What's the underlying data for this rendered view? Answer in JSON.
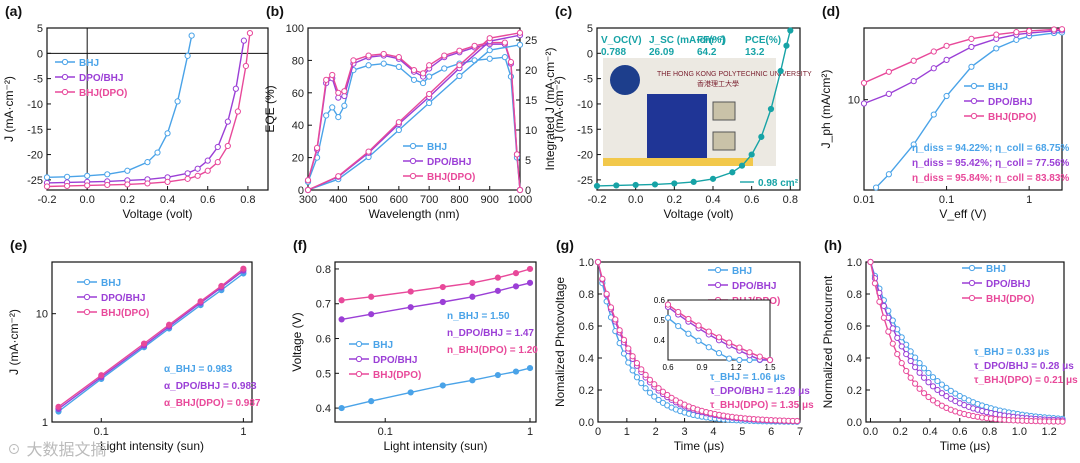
{
  "colors": {
    "bhj": "#4aa3e8",
    "dpo_bhj": "#9b3fd6",
    "bhj_dpo": "#e8499a",
    "teal": "#17a3a6",
    "frame": "#111111"
  },
  "legend": {
    "bhj": "BHJ",
    "dpo_bhj": "DPO/BHJ",
    "bhj_dpo": "BHJ(DPO)"
  },
  "watermark": "大数据文摘",
  "chart_data": [
    {
      "id": "a",
      "panel_label": "(a)",
      "type": "line",
      "xlabel": "Voltage (volt)",
      "ylabel": "J (mA·cm⁻²)",
      "xlim": [
        -0.2,
        0.9
      ],
      "ylim": [
        -27,
        5
      ],
      "xticks": [
        "-0.2",
        "0.0",
        "0.2",
        "0.4",
        "0.6",
        "0.8"
      ],
      "xtickvals": [
        -0.2,
        0,
        0.2,
        0.4,
        0.6,
        0.8
      ],
      "yticks": [
        "5",
        "0",
        "-5",
        "-10",
        "-15",
        "-20",
        "-25"
      ],
      "ytickvals": [
        5,
        0,
        -5,
        -10,
        -15,
        -20,
        -25
      ],
      "series": [
        {
          "name": "BHJ",
          "key": "bhj",
          "x": [
            -0.2,
            -0.1,
            0,
            0.1,
            0.2,
            0.3,
            0.35,
            0.4,
            0.45,
            0.5,
            0.52
          ],
          "y": [
            -24.5,
            -24.4,
            -24.2,
            -23.9,
            -23.2,
            -21.5,
            -19.6,
            -15.8,
            -9.5,
            -0.5,
            3.5
          ]
        },
        {
          "name": "DPO/BHJ",
          "key": "dpo_bhj",
          "x": [
            -0.2,
            -0.1,
            0,
            0.1,
            0.2,
            0.3,
            0.4,
            0.5,
            0.55,
            0.6,
            0.65,
            0.7,
            0.74,
            0.78
          ],
          "y": [
            -25.6,
            -25.5,
            -25.4,
            -25.3,
            -25.1,
            -24.9,
            -24.5,
            -23.7,
            -22.8,
            -21.2,
            -18.5,
            -13.5,
            -7.0,
            2.5
          ]
        },
        {
          "name": "BHJ(DPO)",
          "key": "bhj_dpo",
          "x": [
            -0.2,
            -0.1,
            0,
            0.1,
            0.2,
            0.3,
            0.4,
            0.5,
            0.55,
            0.6,
            0.65,
            0.7,
            0.75,
            0.79,
            0.81
          ],
          "y": [
            -26.3,
            -26.2,
            -26.1,
            -26.0,
            -25.9,
            -25.7,
            -25.4,
            -24.8,
            -24.2,
            -23.2,
            -21.5,
            -18.3,
            -11.5,
            -2.5,
            4.0
          ]
        }
      ]
    },
    {
      "id": "b",
      "panel_label": "(b)",
      "type": "line",
      "xlabel": "Wavelength (nm)",
      "ylabel": "EQE (%)",
      "y2label": "Integrated J (mA·cm⁻²)",
      "xlim": [
        300,
        1000
      ],
      "ylim": [
        0,
        100
      ],
      "y2lim": [
        0,
        27
      ],
      "xticks": [
        "300",
        "400",
        "500",
        "600",
        "700",
        "800",
        "900",
        "1000"
      ],
      "xtickvals": [
        300,
        400,
        500,
        600,
        700,
        800,
        900,
        1000
      ],
      "yticks": [
        "0",
        "20",
        "40",
        "60",
        "80",
        "100"
      ],
      "ytickvals": [
        0,
        20,
        40,
        60,
        80,
        100
      ],
      "y2ticks": [
        "0",
        "5",
        "10",
        "15",
        "20",
        "25"
      ],
      "y2tickvals": [
        0,
        5,
        10,
        15,
        20,
        25
      ],
      "series": [
        {
          "name": "BHJ",
          "key": "bhj",
          "x": [
            300,
            330,
            360,
            380,
            400,
            420,
            450,
            500,
            550,
            600,
            650,
            680,
            700,
            750,
            800,
            850,
            900,
            950,
            970,
            990,
            1000
          ],
          "y": [
            5,
            20,
            46,
            51,
            45,
            52,
            74,
            77,
            78,
            76,
            68,
            66,
            70,
            75,
            78,
            80,
            81,
            82,
            70,
            20,
            0
          ]
        },
        {
          "name": "DPO/BHJ",
          "key": "dpo_bhj",
          "x": [
            300,
            330,
            360,
            380,
            400,
            420,
            450,
            500,
            550,
            600,
            650,
            680,
            700,
            750,
            800,
            850,
            900,
            950,
            970,
            990,
            1000
          ],
          "y": [
            6,
            25,
            66,
            69,
            57,
            58,
            78,
            82,
            83,
            81,
            73,
            70,
            75,
            82,
            85,
            88,
            90,
            90,
            78,
            22,
            0
          ]
        },
        {
          "name": "BHJ(DPO)",
          "key": "bhj_dpo",
          "x": [
            300,
            330,
            360,
            380,
            400,
            420,
            450,
            500,
            550,
            600,
            650,
            680,
            700,
            750,
            800,
            850,
            900,
            950,
            970,
            990,
            1000
          ],
          "y": [
            6,
            26,
            68,
            71,
            60,
            61,
            80,
            83,
            84,
            82,
            74,
            72,
            77,
            83,
            86,
            89,
            91,
            91,
            79,
            22,
            0
          ]
        }
      ],
      "integrated": [
        {
          "name": "BHJ",
          "key": "bhj",
          "x": [
            300,
            400,
            500,
            600,
            700,
            800,
            900,
            1000
          ],
          "y": [
            0,
            1.8,
            5.5,
            10,
            14.5,
            19,
            23.3,
            24.2
          ]
        },
        {
          "name": "DPO/BHJ",
          "key": "dpo_bhj",
          "x": [
            300,
            400,
            500,
            600,
            700,
            800,
            900,
            1000
          ],
          "y": [
            0,
            2.2,
            6.2,
            11,
            15.5,
            20.3,
            24.8,
            25.8
          ]
        },
        {
          "name": "BHJ(DPO)",
          "key": "bhj_dpo",
          "x": [
            300,
            400,
            500,
            600,
            700,
            800,
            900,
            1000
          ],
          "y": [
            0,
            2.3,
            6.4,
            11.3,
            16,
            20.8,
            25.3,
            26.2
          ]
        }
      ]
    },
    {
      "id": "c",
      "panel_label": "(c)",
      "type": "line",
      "xlabel": "Voltage (volt)",
      "ylabel": "J (mA·cm⁻²)",
      "xlim": [
        -0.2,
        0.85
      ],
      "ylim": [
        -27,
        5
      ],
      "xticks": [
        "-0.2",
        "0.0",
        "0.2",
        "0.4",
        "0.6",
        "0.8"
      ],
      "xtickvals": [
        -0.2,
        0,
        0.2,
        0.4,
        0.6,
        0.8
      ],
      "yticks": [
        "5",
        "0",
        "-5",
        "-10",
        "-15",
        "-20",
        "-25"
      ],
      "ytickvals": [
        5,
        0,
        -5,
        -10,
        -15,
        -20,
        -25
      ],
      "table": {
        "headers": [
          "V_OC(V)",
          "J_SC (mA·cm⁻²)",
          "FF(%)",
          "PCE(%)"
        ],
        "values": [
          "0.788",
          "26.09",
          "64.2",
          "13.2"
        ]
      },
      "photo": {
        "top_text": "THE HONG KONG POLYTECHNIC UNIVERSITY",
        "chinese_text": "香港理工大學"
      },
      "area_label": "0.98 cm²",
      "series": [
        {
          "name": "0.98 cm²",
          "key": "teal",
          "x": [
            -0.2,
            -0.1,
            0,
            0.1,
            0.2,
            0.3,
            0.4,
            0.5,
            0.55,
            0.6,
            0.65,
            0.7,
            0.75,
            0.78,
            0.8
          ],
          "y": [
            -26.2,
            -26.1,
            -26.0,
            -25.9,
            -25.7,
            -25.4,
            -24.8,
            -23.5,
            -22.2,
            -20,
            -16.5,
            -11,
            -3.5,
            1.5,
            4.5
          ]
        }
      ]
    },
    {
      "id": "d",
      "panel_label": "(d)",
      "type": "line",
      "xlabel": "V_eff (V)",
      "ylabel": "J_ph (mA/cm²)",
      "scale": "log-log",
      "xlim": [
        0.01,
        2.5
      ],
      "ylim": [
        3,
        26
      ],
      "xticks": [
        "0.01",
        "0.1",
        "1"
      ],
      "xtickvals": [
        0.01,
        0.1,
        1
      ],
      "yticks": [
        "10"
      ],
      "ytickvals": [
        10
      ],
      "annotations": [
        "η_diss = 94.22%;  η_coll = 68.75%",
        "η_diss = 95.42%;  η_coll = 77.56%",
        "η_diss = 95.84%;  η_coll = 83.83%"
      ],
      "series": [
        {
          "name": "BHJ",
          "key": "bhj",
          "x": [
            0.014,
            0.02,
            0.04,
            0.07,
            0.1,
            0.2,
            0.4,
            0.7,
            1,
            2,
            2.5
          ],
          "y": [
            3.1,
            3.7,
            5.5,
            8.2,
            10.5,
            15.5,
            19.8,
            22.2,
            23.3,
            24.3,
            24.5
          ]
        },
        {
          "name": "DPO/BHJ",
          "key": "dpo_bhj",
          "x": [
            0.01,
            0.02,
            0.04,
            0.07,
            0.1,
            0.2,
            0.4,
            0.7,
            1,
            2,
            2.5
          ],
          "y": [
            9.5,
            10.8,
            12.8,
            15.2,
            17.0,
            20.2,
            22.5,
            23.8,
            24.3,
            25.0,
            25.2
          ]
        },
        {
          "name": "BHJ(DPO)",
          "key": "bhj_dpo",
          "x": [
            0.01,
            0.02,
            0.04,
            0.07,
            0.1,
            0.2,
            0.4,
            0.7,
            1,
            2,
            2.5
          ],
          "y": [
            12.5,
            14.5,
            16.8,
            19.0,
            20.5,
            22.5,
            23.8,
            24.6,
            25.0,
            25.5,
            25.6
          ]
        }
      ]
    },
    {
      "id": "e",
      "panel_label": "(e)",
      "type": "scatter",
      "xlabel": "Light intensity (sun)",
      "ylabel": "J (mA·cm⁻²)",
      "scale": "log-log",
      "xlim": [
        0.045,
        1.15
      ],
      "ylim": [
        1,
        30
      ],
      "xticks": [
        "0.1",
        "1"
      ],
      "xtickvals": [
        0.1,
        1
      ],
      "yticks": [
        "1",
        "10"
      ],
      "ytickvals": [
        1,
        10
      ],
      "annotations": [
        "α_BHJ = 0.983",
        "α_DPO/BHJ = 0.983",
        "α_BHJ(DPO) = 0.987"
      ],
      "series": [
        {
          "name": "BHJ",
          "key": "bhj",
          "x": [
            0.05,
            0.1,
            0.2,
            0.3,
            0.5,
            0.7,
            1
          ],
          "y": [
            1.25,
            2.5,
            4.9,
            7.3,
            12,
            16.5,
            23.5
          ]
        },
        {
          "name": "DPO/BHJ",
          "key": "dpo_bhj",
          "x": [
            0.05,
            0.1,
            0.2,
            0.3,
            0.5,
            0.7,
            1
          ],
          "y": [
            1.32,
            2.6,
            5.1,
            7.6,
            12.6,
            17.5,
            25
          ]
        },
        {
          "name": "BHJ(DPO)",
          "key": "bhj_dpo",
          "x": [
            0.05,
            0.1,
            0.2,
            0.3,
            0.5,
            0.7,
            1
          ],
          "y": [
            1.38,
            2.7,
            5.3,
            7.9,
            13,
            18,
            26
          ]
        }
      ]
    },
    {
      "id": "f",
      "panel_label": "(f)",
      "type": "scatter",
      "xlabel": "Light intensity (sun)",
      "ylabel": "Voltage (V)",
      "scale": "log-x",
      "xlim": [
        0.045,
        1.1
      ],
      "ylim": [
        0.36,
        0.82
      ],
      "xticks": [
        "0.1",
        "1"
      ],
      "xtickvals": [
        0.1,
        1
      ],
      "yticks": [
        "0.4",
        "0.5",
        "0.6",
        "0.7",
        "0.8"
      ],
      "ytickvals": [
        0.4,
        0.5,
        0.6,
        0.7,
        0.8
      ],
      "annotations": [
        "n_BHJ = 1.50",
        "n_DPO/BHJ = 1.47",
        "n_BHJ(DPO) = 1.20"
      ],
      "series": [
        {
          "name": "BHJ",
          "key": "bhj",
          "x": [
            0.05,
            0.08,
            0.15,
            0.25,
            0.4,
            0.6,
            0.8,
            1
          ],
          "y": [
            0.4,
            0.42,
            0.445,
            0.465,
            0.48,
            0.495,
            0.505,
            0.515
          ]
        },
        {
          "name": "DPO/BHJ",
          "key": "dpo_bhj",
          "x": [
            0.05,
            0.08,
            0.15,
            0.25,
            0.4,
            0.6,
            0.8,
            1
          ],
          "y": [
            0.655,
            0.67,
            0.69,
            0.705,
            0.72,
            0.737,
            0.75,
            0.76
          ]
        },
        {
          "name": "BHJ(DPO)",
          "key": "bhj_dpo",
          "x": [
            0.05,
            0.08,
            0.15,
            0.25,
            0.4,
            0.6,
            0.8,
            1
          ],
          "y": [
            0.71,
            0.72,
            0.735,
            0.748,
            0.76,
            0.775,
            0.788,
            0.8
          ]
        }
      ]
    },
    {
      "id": "g",
      "panel_label": "(g)",
      "type": "line",
      "xlabel": "Time (μs)",
      "ylabel": "Nomalized Photovoltage",
      "xlim": [
        0,
        7
      ],
      "ylim": [
        0,
        1
      ],
      "xticks": [
        "0",
        "1",
        "2",
        "3",
        "4",
        "5",
        "6",
        "7"
      ],
      "xtickvals": [
        0,
        1,
        2,
        3,
        4,
        5,
        6,
        7
      ],
      "yticks": [
        "0.0",
        "0.2",
        "0.4",
        "0.6",
        "0.8",
        "1.0"
      ],
      "ytickvals": [
        0,
        0.2,
        0.4,
        0.6,
        0.8,
        1
      ],
      "annotations": [
        "τ_BHJ = 1.06 μs",
        "τ_DPO/BHJ = 1.29 μs",
        "τ_BHJ(DPO) = 1.35 μs"
      ],
      "inset": {
        "xlim": [
          0.6,
          1.5
        ],
        "ylim": [
          0.3,
          0.6
        ],
        "xticks": [
          "0.6",
          "0.9",
          "1.2",
          "1.5"
        ],
        "xtickvals": [
          0.6,
          0.9,
          1.2,
          1.5
        ],
        "yticks": [
          "0.4",
          "0.5",
          "0.6"
        ],
        "ytickvals": [
          0.4,
          0.5,
          0.6
        ]
      },
      "tau": [
        1.06,
        1.29,
        1.35
      ]
    },
    {
      "id": "h",
      "panel_label": "(h)",
      "type": "line",
      "xlabel": "Time (μs)",
      "ylabel": "Normalized Photocurrent",
      "xlim": [
        -0.03,
        1.3
      ],
      "ylim": [
        0,
        1
      ],
      "xticks": [
        "0.0",
        "0.2",
        "0.4",
        "0.6",
        "0.8",
        "1.0",
        "1.2"
      ],
      "xtickvals": [
        0,
        0.2,
        0.4,
        0.6,
        0.8,
        1,
        1.2
      ],
      "yticks": [
        "0.0",
        "0.2",
        "0.4",
        "0.6",
        "0.8",
        "1.0"
      ],
      "ytickvals": [
        0,
        0.2,
        0.4,
        0.6,
        0.8,
        1
      ],
      "annotations": [
        "τ_BHJ = 0.33 μs",
        "τ_DPO/BHJ = 0.28 μs",
        "τ_BHJ(DPO) = 0.21 μs"
      ],
      "tau": [
        0.33,
        0.28,
        0.21
      ]
    }
  ]
}
